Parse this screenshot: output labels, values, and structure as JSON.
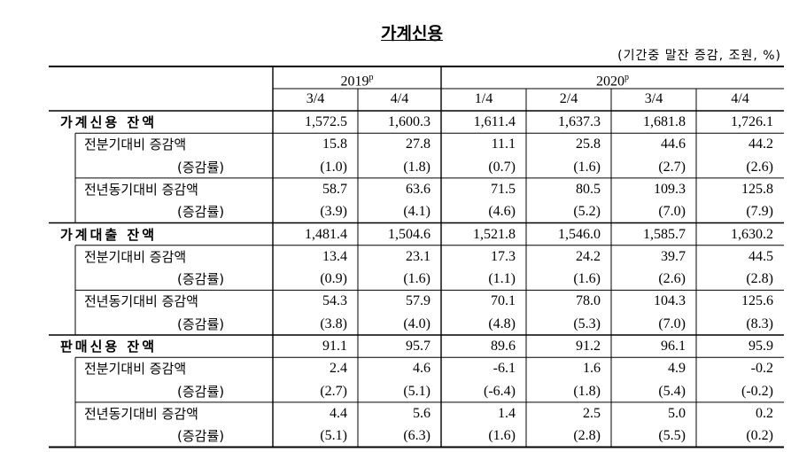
{
  "header": {
    "title": "가계신용",
    "unit": "(기간중 말잔 증감, 조원, %)"
  },
  "table": {
    "years": [
      {
        "label": "2019",
        "sup": "p"
      },
      {
        "label": "2020",
        "sup": "p"
      }
    ],
    "quarters": [
      "3/4",
      "4/4",
      "1/4",
      "2/4",
      "3/4",
      "4/4"
    ],
    "groups": [
      {
        "title": "가계신용 잔액",
        "values": [
          "1,572.5",
          "1,600.3",
          "1,611.4",
          "1,637.3",
          "1,681.8",
          "1,726.1"
        ],
        "rows": [
          {
            "label": "전분기대비 증감액",
            "values": [
              "15.8",
              "27.8",
              "11.1",
              "25.8",
              "44.6",
              "44.2"
            ]
          },
          {
            "label": "(증감률)",
            "values": [
              "(1.0)",
              "(1.8)",
              "(0.7)",
              "(1.6)",
              "(2.7)",
              "(2.6)"
            ]
          },
          {
            "label": "전년동기대비 증감액",
            "values": [
              "58.7",
              "63.6",
              "71.5",
              "80.5",
              "109.3",
              "125.8"
            ]
          },
          {
            "label": "(증감률)",
            "values": [
              "(3.9)",
              "(4.1)",
              "(4.6)",
              "(5.2)",
              "(7.0)",
              "(7.9)"
            ]
          }
        ]
      },
      {
        "title": "가계대출 잔액",
        "values": [
          "1,481.4",
          "1,504.6",
          "1,521.8",
          "1,546.0",
          "1,585.7",
          "1,630.2"
        ],
        "rows": [
          {
            "label": "전분기대비 증감액",
            "values": [
              "13.4",
              "23.1",
              "17.3",
              "24.2",
              "39.7",
              "44.5"
            ]
          },
          {
            "label": "(증감률)",
            "values": [
              "(0.9)",
              "(1.6)",
              "(1.1)",
              "(1.6)",
              "(2.6)",
              "(2.8)"
            ]
          },
          {
            "label": "전년동기대비 증감액",
            "values": [
              "54.3",
              "57.9",
              "70.1",
              "78.0",
              "104.3",
              "125.6"
            ]
          },
          {
            "label": "(증감률)",
            "values": [
              "(3.8)",
              "(4.0)",
              "(4.8)",
              "(5.3)",
              "(7.0)",
              "(8.3)"
            ]
          }
        ]
      },
      {
        "title": "판매신용 잔액",
        "values": [
          "91.1",
          "95.7",
          "89.6",
          "91.2",
          "96.1",
          "95.9"
        ],
        "rows": [
          {
            "label": "전분기대비 증감액",
            "values": [
              "2.4",
              "4.6",
              "-6.1",
              "1.6",
              "4.9",
              "-0.2"
            ]
          },
          {
            "label": "(증감률)",
            "values": [
              "(2.7)",
              "(5.1)",
              "(-6.4)",
              "(1.8)",
              "(5.4)",
              "(-0.2)"
            ]
          },
          {
            "label": "전년동기대비 증감액",
            "values": [
              "4.4",
              "5.6",
              "1.4",
              "2.5",
              "5.0",
              "0.2"
            ]
          },
          {
            "label": "(증감률)",
            "values": [
              "(5.1)",
              "(6.3)",
              "(1.6)",
              "(2.8)",
              "(5.5)",
              "(0.2)"
            ]
          }
        ]
      }
    ]
  }
}
